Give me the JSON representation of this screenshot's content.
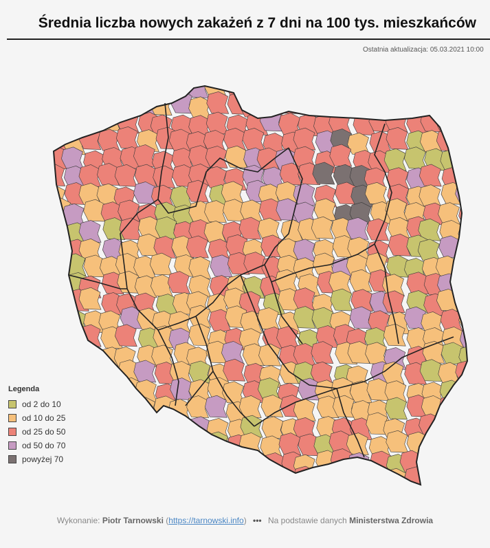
{
  "title": "Średnia liczba nowych zakażeń z 7 dni na 100 tys. mieszkańców",
  "last_update": "Ostatnia aktualizacja: 05.03.2021 10:00",
  "legend": {
    "title": "Legenda",
    "items": [
      {
        "label": "od 2 do 10",
        "color": "#c7c46e"
      },
      {
        "label": "od 10 do 25",
        "color": "#f6c07b"
      },
      {
        "label": "od 25 do 50",
        "color": "#ec8278"
      },
      {
        "label": "od 50 do 70",
        "color": "#c69bc2"
      },
      {
        "label": "powyżej 70",
        "color": "#7b7171"
      }
    ]
  },
  "footer": {
    "prefix": "Wykonanie:",
    "author": "Piotr Tarnowski",
    "link": "https://tarnowski.info",
    "source_prefix": "Na podstawie danych",
    "source": "Ministerstwa Zdrowia"
  }
}
